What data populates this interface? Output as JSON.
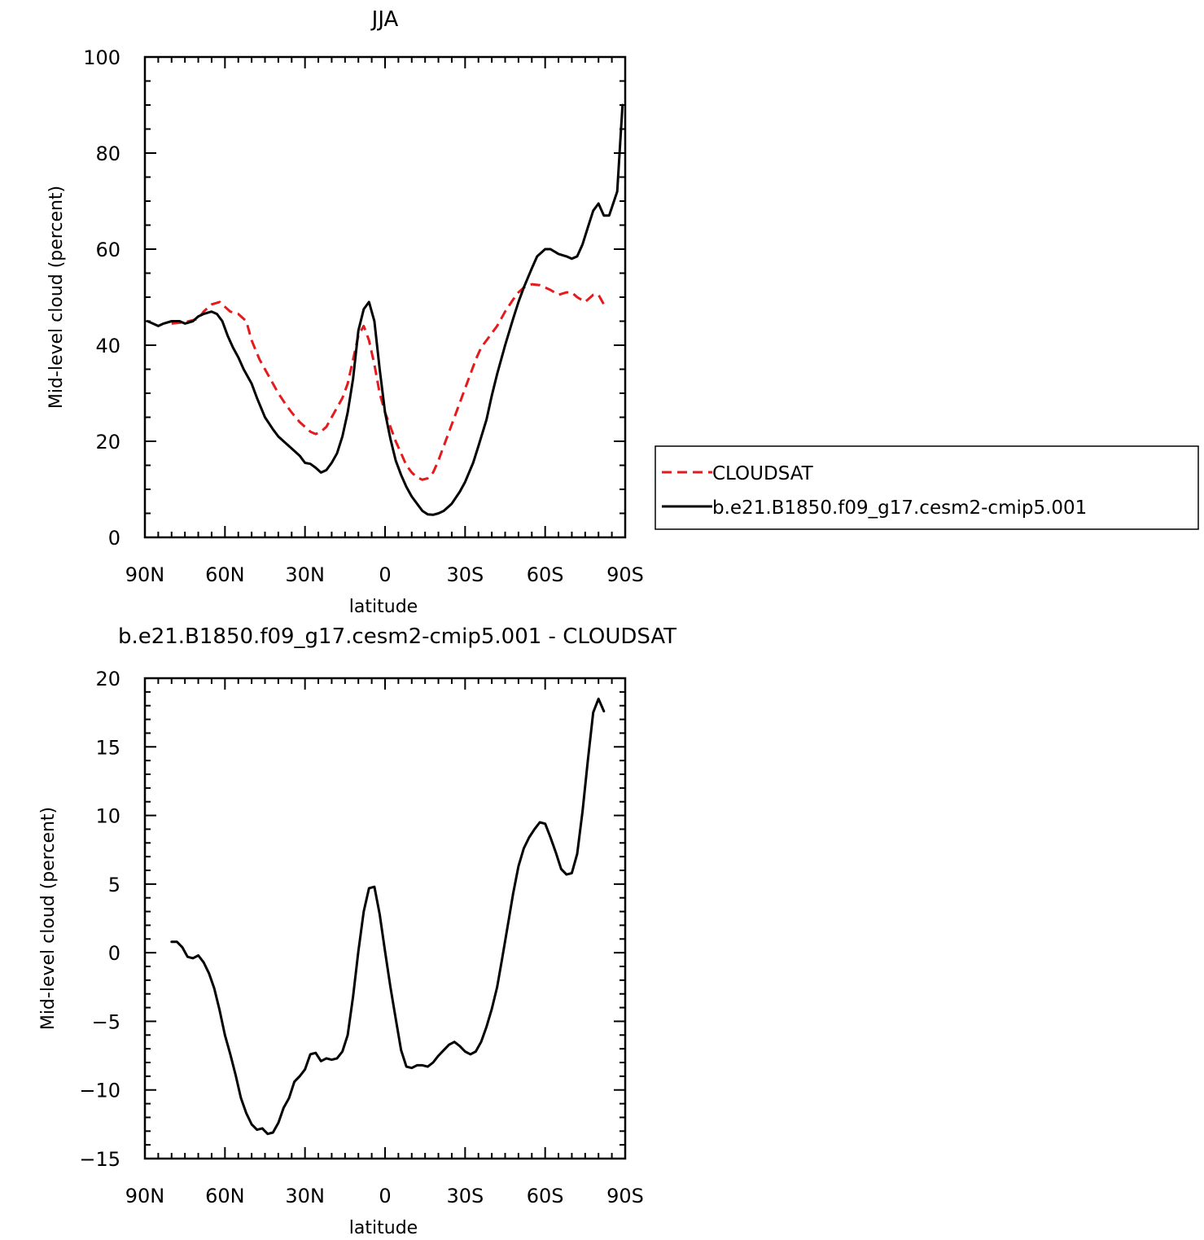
{
  "chart_data": [
    {
      "type": "line",
      "title": "JJA",
      "xlabel": "latitude",
      "ylabel": "Mid-level cloud (percent)",
      "xlim": [
        90,
        -90
      ],
      "ylim": [
        0,
        100
      ],
      "xticks": [
        {
          "value": 90,
          "label": "90N"
        },
        {
          "value": 60,
          "label": "60N"
        },
        {
          "value": 30,
          "label": "30N"
        },
        {
          "value": 0,
          "label": "0"
        },
        {
          "value": -30,
          "label": "30S"
        },
        {
          "value": -60,
          "label": "60S"
        },
        {
          "value": -90,
          "label": "90S"
        }
      ],
      "yticks": [
        {
          "value": 0,
          "label": "0"
        },
        {
          "value": 20,
          "label": "20"
        },
        {
          "value": 40,
          "label": "40"
        },
        {
          "value": 60,
          "label": "60"
        },
        {
          "value": 80,
          "label": "80"
        },
        {
          "value": 100,
          "label": "100"
        }
      ],
      "legend": {
        "placement": "right-outside"
      },
      "series": [
        {
          "name": "CLOUDSAT",
          "color": "#e41a1c",
          "dash": "dashed",
          "x": [
            80,
            75,
            70,
            68,
            65,
            62,
            60,
            58,
            55,
            52,
            50,
            47,
            45,
            42,
            40,
            37,
            35,
            32,
            30,
            28,
            26,
            24,
            22,
            20,
            18,
            16,
            14,
            12,
            10,
            8,
            6,
            4,
            2,
            0,
            -2,
            -4,
            -6,
            -8,
            -10,
            -12,
            -14,
            -16,
            -18,
            -20,
            -22,
            -24,
            -26,
            -28,
            -30,
            -32,
            -34,
            -36,
            -38,
            -40,
            -42,
            -45,
            -48,
            -50,
            -52,
            -55,
            -58,
            -60,
            -62,
            -65,
            -68,
            -70,
            -72,
            -75,
            -78,
            -80,
            -82
          ],
          "y": [
            44.5,
            44.8,
            45.5,
            47,
            48.5,
            49,
            48,
            47,
            46.5,
            45,
            41,
            37,
            35,
            32,
            30,
            27.5,
            26,
            24,
            23,
            22,
            21.5,
            22,
            23,
            25,
            27,
            29,
            32,
            37,
            42,
            44,
            41,
            36,
            30,
            26,
            23,
            20,
            17.5,
            15,
            13.5,
            12.5,
            12,
            12.3,
            13.5,
            16,
            19,
            22,
            25,
            28,
            31,
            34,
            37,
            39.5,
            41,
            42.5,
            44,
            47,
            49.5,
            51,
            52,
            52.7,
            52.5,
            52,
            51.5,
            50.5,
            51,
            51,
            50,
            49,
            50.5,
            50.5,
            48.5
          ]
        },
        {
          "name": "b.e21.B1850.f09_g17.cesm2-cmip5.001",
          "color": "#000000",
          "dash": "solid",
          "x": [
            89,
            87,
            85,
            83,
            80,
            77,
            75,
            72,
            70,
            68,
            65,
            63,
            61,
            59,
            57,
            55,
            53,
            50,
            48,
            45,
            42,
            40,
            38,
            35,
            32,
            30,
            28,
            26,
            24,
            22,
            20,
            18,
            16,
            14,
            12,
            10,
            8,
            6,
            4,
            2,
            0,
            -2,
            -4,
            -6,
            -8,
            -10,
            -12,
            -14,
            -16,
            -18,
            -20,
            -22,
            -25,
            -28,
            -30,
            -33,
            -35,
            -38,
            -40,
            -42,
            -45,
            -48,
            -50,
            -52,
            -55,
            -57,
            -60,
            -62,
            -65,
            -68,
            -70,
            -72,
            -74,
            -76,
            -78,
            -80,
            -82,
            -84,
            -87,
            -89
          ],
          "y": [
            45,
            44.5,
            44,
            44.5,
            45,
            45,
            44.5,
            45,
            46,
            46.5,
            47,
            46.5,
            45,
            42,
            39.5,
            37.5,
            35,
            32,
            29,
            25,
            22.5,
            21,
            20,
            18.5,
            17,
            15.5,
            15.3,
            14.5,
            13.5,
            14,
            15.5,
            17.5,
            21,
            26,
            33,
            43,
            47.5,
            49,
            45,
            35,
            26,
            20.5,
            16,
            13,
            10.5,
            8.5,
            7,
            5.5,
            4.8,
            4.7,
            5,
            5.5,
            7,
            9.5,
            11.5,
            15.5,
            19,
            24.5,
            29.5,
            34,
            40,
            45.5,
            49,
            52,
            56,
            58.5,
            60,
            60,
            59,
            58.5,
            58,
            58.5,
            61,
            64.5,
            68,
            69.5,
            67,
            67,
            72,
            90
          ]
        }
      ]
    },
    {
      "type": "line",
      "title": "b.e21.B1850.f09_g17.cesm2-cmip5.001 - CLOUDSAT",
      "xlabel": "latitude",
      "ylabel": "Mid-level cloud (percent)",
      "xlim": [
        90,
        -90
      ],
      "ylim": [
        -15,
        20
      ],
      "xticks": [
        {
          "value": 90,
          "label": "90N"
        },
        {
          "value": 60,
          "label": "60N"
        },
        {
          "value": 30,
          "label": "30N"
        },
        {
          "value": 0,
          "label": "0"
        },
        {
          "value": -30,
          "label": "30S"
        },
        {
          "value": -60,
          "label": "60S"
        },
        {
          "value": -90,
          "label": "90S"
        }
      ],
      "yticks": [
        {
          "value": -15,
          "label": "−15"
        },
        {
          "value": -10,
          "label": "−10"
        },
        {
          "value": -5,
          "label": "−5"
        },
        {
          "value": 0,
          "label": "0"
        },
        {
          "value": 5,
          "label": "5"
        },
        {
          "value": 10,
          "label": "10"
        },
        {
          "value": 15,
          "label": "15"
        },
        {
          "value": 20,
          "label": "20"
        }
      ],
      "series": [
        {
          "name": "",
          "color": "#000000",
          "dash": "solid",
          "x": [
            80,
            78,
            76,
            74,
            72,
            70,
            68,
            66,
            64,
            62,
            60,
            58,
            56,
            54,
            52,
            50,
            48,
            46,
            44,
            42,
            40,
            38,
            36,
            34,
            32,
            30,
            28,
            26,
            24,
            22,
            20,
            18,
            16,
            14,
            12,
            10,
            8,
            6,
            4,
            2,
            0,
            -2,
            -4,
            -6,
            -8,
            -10,
            -12,
            -14,
            -16,
            -18,
            -20,
            -22,
            -24,
            -26,
            -28,
            -30,
            -32,
            -34,
            -36,
            -38,
            -40,
            -42,
            -44,
            -46,
            -48,
            -50,
            -52,
            -54,
            -56,
            -58,
            -60,
            -62,
            -64,
            -66,
            -68,
            -70,
            -72,
            -74,
            -76,
            -78,
            -80,
            -82
          ],
          "y": [
            0.8,
            0.8,
            0.4,
            -0.3,
            -0.4,
            -0.2,
            -0.7,
            -1.5,
            -2.6,
            -4.2,
            -6.0,
            -7.4,
            -8.9,
            -10.6,
            -11.7,
            -12.5,
            -12.9,
            -12.8,
            -13.2,
            -13.1,
            -12.4,
            -11.3,
            -10.6,
            -9.4,
            -9.0,
            -8.5,
            -7.4,
            -7.3,
            -7.9,
            -7.7,
            -7.8,
            -7.7,
            -7.2,
            -6.0,
            -3.2,
            0.1,
            3.0,
            4.7,
            4.8,
            2.8,
            0.1,
            -2.5,
            -4.8,
            -7.1,
            -8.3,
            -8.4,
            -8.2,
            -8.2,
            -8.3,
            -8.0,
            -7.5,
            -7.1,
            -6.7,
            -6.5,
            -6.8,
            -7.2,
            -7.4,
            -7.2,
            -6.5,
            -5.4,
            -4.1,
            -2.5,
            -0.3,
            2.0,
            4.3,
            6.3,
            7.6,
            8.4,
            9.0,
            9.5,
            9.4,
            8.4,
            7.3,
            6.1,
            5.7,
            5.8,
            7.2,
            10.3,
            14.0,
            17.5,
            18.5,
            17.6
          ]
        }
      ]
    }
  ]
}
